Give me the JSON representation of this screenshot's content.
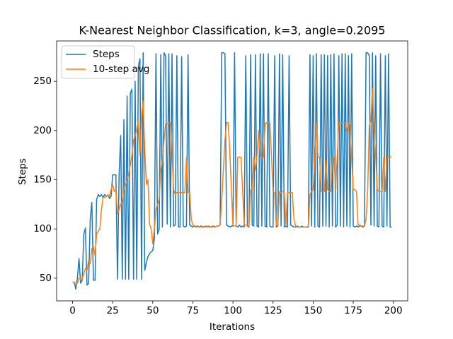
{
  "chart_data": {
    "type": "line",
    "title": "K-Nearest Neighbor Classification, k=3, angle=0.2095",
    "xlabel": "Iterations",
    "ylabel": "Steps",
    "x": [
      0,
      1,
      2,
      3,
      4,
      5,
      6,
      7,
      8,
      9,
      10,
      11,
      12,
      13,
      14,
      15,
      16,
      17,
      18,
      19,
      20,
      21,
      22,
      23,
      24,
      25,
      26,
      27,
      28,
      29,
      30,
      31,
      32,
      33,
      34,
      35,
      36,
      37,
      38,
      39,
      40,
      41,
      42,
      43,
      44,
      45,
      46,
      47,
      48,
      49,
      50,
      51,
      52,
      53,
      54,
      55,
      56,
      57,
      58,
      59,
      60,
      61,
      62,
      63,
      64,
      65,
      66,
      67,
      68,
      69,
      70,
      71,
      72,
      73,
      74,
      75,
      76,
      77,
      78,
      79,
      80,
      81,
      82,
      83,
      84,
      85,
      86,
      87,
      88,
      89,
      90,
      91,
      92,
      93,
      94,
      95,
      96,
      97,
      98,
      99,
      100,
      101,
      102,
      103,
      104,
      105,
      106,
      107,
      108,
      109,
      110,
      111,
      112,
      113,
      114,
      115,
      116,
      117,
      118,
      119,
      120,
      121,
      122,
      123,
      124,
      125,
      126,
      127,
      128,
      129,
      130,
      131,
      132,
      133,
      134,
      135,
      136,
      137,
      138,
      139,
      140,
      141,
      142,
      143,
      144,
      145,
      146,
      147,
      148,
      149,
      150,
      151,
      152,
      153,
      154,
      155,
      156,
      157,
      158,
      159,
      160,
      161,
      162,
      163,
      164,
      165,
      166,
      167,
      168,
      169,
      170,
      171,
      172,
      173,
      174,
      175,
      176,
      177,
      178,
      179,
      180,
      181,
      182,
      183,
      184,
      185,
      186,
      187,
      188,
      189,
      190,
      191,
      192,
      193,
      194,
      195,
      196,
      197,
      198,
      199
    ],
    "series": [
      {
        "name": "Steps",
        "color": "#1f77b4",
        "values": [
          46,
          46,
          39,
          50,
          70,
          45,
          48,
          95,
          101,
          43,
          45,
          110,
          127,
          48,
          48,
          130,
          135,
          133,
          135,
          132,
          135,
          133,
          135,
          131,
          133,
          155,
          155,
          155,
          49,
          155,
          195,
          49,
          211,
          49,
          235,
          49,
          238,
          242,
          49,
          250,
          49,
          265,
          273,
          49,
          279,
          58,
          66,
          72,
          75,
          77,
          78,
          90,
          278,
          95,
          100,
          277,
          102,
          279,
          276,
          105,
          278,
          102,
          278,
          103,
          104,
          276,
          102,
          102,
          275,
          103,
          102,
          103,
          277,
          104,
          103,
          102,
          103,
          102,
          103,
          102,
          103,
          102,
          102,
          103,
          102,
          103,
          102,
          102,
          103,
          102,
          103,
          103,
          104,
          279,
          279,
          278,
          104,
          103,
          102,
          103,
          103,
          279,
          103,
          102,
          104,
          102,
          103,
          102,
          276,
          103,
          102,
          277,
          104,
          103,
          277,
          103,
          102,
          278,
          103,
          278,
          103,
          102,
          278,
          103,
          102,
          102,
          276,
          102,
          103,
          278,
          103,
          277,
          102,
          103,
          102,
          276,
          104,
          103,
          102,
          102,
          103,
          102,
          102,
          103,
          102,
          102,
          102,
          102,
          277,
          103,
          276,
          102,
          278,
          103,
          102,
          277,
          103,
          277,
          103,
          276,
          102,
          277,
          103,
          278,
          102,
          104,
          276,
          103,
          278,
          102,
          278,
          103,
          276,
          102,
          278,
          103,
          102,
          103,
          102,
          103,
          103,
          102,
          103,
          279,
          279,
          276,
          104,
          279,
          103,
          276,
          103,
          102,
          278,
          103,
          102,
          276,
          103,
          278,
          102,
          102
        ]
      },
      {
        "name": "10-step avg",
        "color": "#ff7f0e",
        "values": [
          46,
          46,
          44,
          45,
          50,
          49,
          49,
          55,
          60,
          58,
          68,
          65,
          80,
          82,
          73,
          95,
          98,
          100,
          120,
          132,
          132,
          133,
          135,
          133,
          140,
          145,
          138,
          140,
          115,
          120,
          125,
          128,
          140,
          145,
          150,
          155,
          165,
          175,
          190,
          195,
          200,
          210,
          175,
          215,
          230,
          180,
          145,
          150,
          105,
          100,
          85,
          100,
          120,
          125,
          130,
          160,
          170,
          190,
          207,
          207,
          208,
          208,
          175,
          140,
          135,
          137,
          137,
          137,
          137,
          137,
          137,
          173,
          137,
          137,
          110,
          104,
          103,
          103,
          102,
          102,
          102,
          103,
          102,
          102,
          103,
          102,
          102,
          103,
          102,
          102,
          103,
          103,
          104,
          130,
          160,
          190,
          208,
          208,
          180,
          140,
          104,
          103,
          103,
          173,
          173,
          173,
          140,
          104,
          104,
          103,
          103,
          140,
          140,
          173,
          160,
          175,
          200,
          173,
          173,
          173,
          207,
          208,
          208,
          208,
          175,
          138,
          137,
          104,
          103,
          138,
          137,
          138,
          137,
          104,
          137,
          137,
          137,
          137,
          110,
          103,
          102,
          102,
          102,
          102,
          102,
          102,
          102,
          103,
          135,
          138,
          140,
          170,
          208,
          173,
          173,
          138,
          138,
          138,
          170,
          140,
          138,
          138,
          173,
          173,
          140,
          173,
          208,
          208,
          208,
          208,
          208,
          200,
          208,
          205,
          173,
          140,
          140,
          138,
          104,
          104,
          103,
          103,
          103,
          110,
          140,
          205,
          210,
          243,
          200,
          175,
          140,
          138,
          138,
          138,
          173,
          138,
          173,
          173,
          173,
          173
        ]
      }
    ],
    "xlim": [
      -9.95,
      208.95
    ],
    "ylim": [
      27,
      291
    ],
    "xticks": [
      0,
      25,
      50,
      75,
      100,
      125,
      150,
      175,
      200
    ],
    "yticks": [
      50,
      100,
      150,
      200,
      250
    ],
    "legend": "upper left"
  }
}
